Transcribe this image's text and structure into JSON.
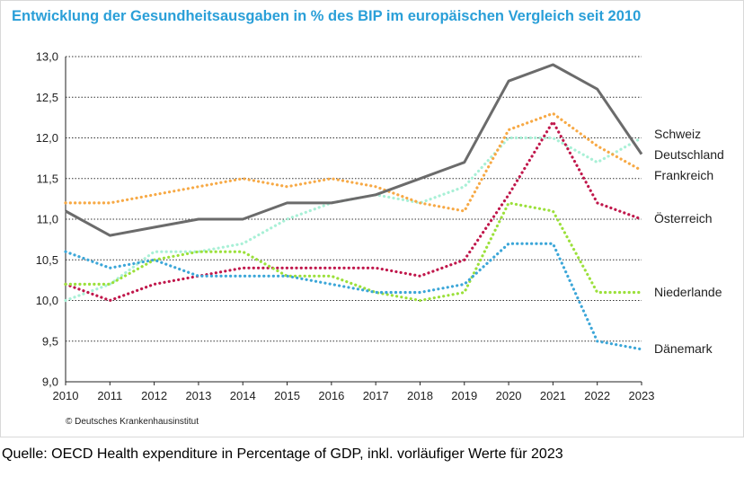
{
  "title": "Entwicklung der Gesundheitsausgaben in % des BIP im europäischen Vergleich seit 2010",
  "copyright": "© Deutsches Krankenhausinstitut",
  "source": "Quelle: OECD Health expenditure in Percentage of GDP, inkl. vorläufiger Werte für 2023",
  "chart_data": {
    "type": "line",
    "title": "Entwicklung der Gesundheitsausgaben in % des BIP im europäischen Vergleich seit 2010",
    "xlabel": "",
    "ylabel": "",
    "x": [
      2010,
      2011,
      2012,
      2013,
      2014,
      2015,
      2016,
      2017,
      2018,
      2019,
      2020,
      2021,
      2022,
      2023
    ],
    "x_tick_labels": [
      "2010",
      "2011",
      "2012",
      "2013",
      "2014",
      "2015",
      "2016",
      "2017",
      "2018",
      "2019",
      "2020",
      "2021",
      "2022",
      "2023"
    ],
    "ylim": [
      9.0,
      13.0
    ],
    "y_ticks": [
      9.0,
      9.5,
      10.0,
      10.5,
      11.0,
      11.5,
      12.0,
      12.5,
      13.0
    ],
    "y_tick_labels": [
      "9,0",
      "9,5",
      "10,0",
      "10,5",
      "11,0",
      "11,5",
      "12,0",
      "12,5",
      "13,0"
    ],
    "grid": "horizontal dotted",
    "legend": "labels at right end of lines",
    "series": [
      {
        "name": "Deutschland",
        "color": "#6b6b6b",
        "style": "solid",
        "values": [
          11.1,
          10.8,
          10.9,
          11.0,
          11.0,
          11.2,
          11.2,
          11.3,
          11.5,
          11.7,
          12.7,
          12.9,
          12.6,
          11.8
        ]
      },
      {
        "name": "Schweiz",
        "color": "#a8f0d6",
        "style": "dotted",
        "values": [
          10.0,
          10.2,
          10.6,
          10.6,
          10.7,
          11.0,
          11.2,
          11.3,
          11.2,
          11.4,
          12.0,
          12.0,
          11.7,
          12.0
        ]
      },
      {
        "name": "Frankreich",
        "color": "#f7a945",
        "style": "dotted",
        "values": [
          11.2,
          11.2,
          11.3,
          11.4,
          11.5,
          11.4,
          11.5,
          11.4,
          11.2,
          11.1,
          12.1,
          12.3,
          11.9,
          11.6
        ]
      },
      {
        "name": "Österreich",
        "color": "#c0174b",
        "style": "dotted",
        "values": [
          10.2,
          10.0,
          10.2,
          10.3,
          10.4,
          10.4,
          10.4,
          10.4,
          10.3,
          10.5,
          11.3,
          12.2,
          11.2,
          11.0
        ]
      },
      {
        "name": "Niederlande",
        "color": "#9be03a",
        "style": "dotted",
        "values": [
          10.2,
          10.2,
          10.5,
          10.6,
          10.6,
          10.3,
          10.3,
          10.1,
          10.0,
          10.1,
          11.2,
          11.1,
          10.1,
          10.1
        ]
      },
      {
        "name": "Dänemark",
        "color": "#3ba6d8",
        "style": "dotted",
        "values": [
          10.6,
          10.4,
          10.5,
          10.3,
          10.3,
          10.3,
          10.2,
          10.1,
          10.1,
          10.2,
          10.7,
          10.7,
          9.5,
          9.4
        ]
      }
    ]
  }
}
